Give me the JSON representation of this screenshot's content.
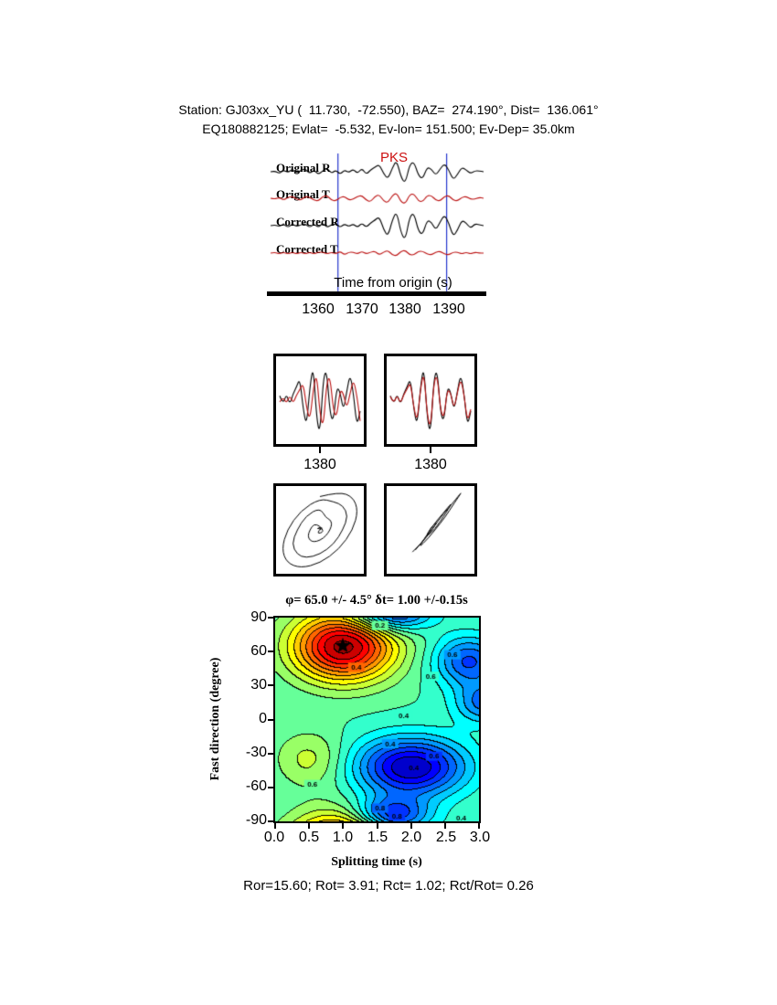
{
  "header": {
    "line1": "Station: GJ03xx_YU (  11.730,  -72.550), BAZ=  274.190°, Dist=  136.061°",
    "line2": "EQ180882125; Evlat=  -5.532, Ev-lon= 151.500; Ev-Dep= 35.0km"
  },
  "waveform_panel": {
    "phase_label": "PKS",
    "phase_color": "#cc1111",
    "trace_labels": [
      "Original R",
      "Original T",
      "Corrected R",
      "Corrected T"
    ],
    "axis_label": "Time from origin (s)",
    "window_color": "#2233cc"
  },
  "window_boxes": {
    "left_tick": "1380",
    "right_tick": "1380"
  },
  "footer": {
    "text": "Ror=15.60; Rot= 3.91; Rct= 1.02; Rct/Rot= 0.26"
  },
  "chart_data": [
    {
      "type": "line",
      "id": "seismograms",
      "xlabel": "Time from origin (s)",
      "x_start": 1349,
      "x_step": 1,
      "xlim": [
        1349,
        1398
      ],
      "xticks": [
        "1360",
        "1370",
        "1380",
        "1390"
      ],
      "window_lines": [
        1364.5,
        1389.5
      ],
      "series": [
        {
          "name": "Original R",
          "color": "#000000",
          "values": [
            0,
            1,
            -2,
            2,
            -1,
            3,
            -2,
            2,
            3,
            -2,
            2,
            -3,
            1,
            4,
            -2,
            2,
            -3,
            2,
            -1,
            3,
            -2,
            4,
            -3,
            2,
            5,
            8,
            -2,
            -8,
            4,
            13,
            -6,
            -13,
            8,
            11,
            -4,
            -8,
            5,
            3,
            -4,
            3,
            9,
            2,
            -9,
            -3,
            5,
            2,
            -2,
            1,
            1,
            0
          ]
        },
        {
          "name": "Original T",
          "color": "#bb1111",
          "values": [
            0,
            -1,
            1,
            -2,
            1,
            2,
            -1,
            -2,
            2,
            1,
            -2,
            -3,
            2,
            3,
            -2,
            -3,
            1,
            2,
            -2,
            -1,
            2,
            3,
            -2,
            -4,
            2,
            4,
            -3,
            -5,
            3,
            6,
            -4,
            -6,
            4,
            5,
            -3,
            -4,
            3,
            3,
            -2,
            -3,
            2,
            3,
            -2,
            -3,
            1,
            2,
            -1,
            -1,
            1,
            0
          ]
        },
        {
          "name": "Corrected R",
          "color": "#000000",
          "values": [
            0,
            1,
            -1,
            2,
            -2,
            2,
            -1,
            1,
            2,
            -2,
            2,
            -2,
            3,
            -2,
            1,
            2,
            -2,
            2,
            -1,
            2,
            -2,
            3,
            -2,
            3,
            6,
            10,
            -4,
            -12,
            6,
            16,
            -8,
            -16,
            10,
            14,
            -6,
            -10,
            6,
            4,
            -5,
            4,
            12,
            3,
            -12,
            -5,
            6,
            3,
            -3,
            2,
            1,
            0
          ]
        },
        {
          "name": "Corrected T",
          "color": "#bb1111",
          "values": [
            0,
            1,
            -1,
            1,
            -1,
            1,
            -1,
            1,
            -1,
            1,
            -1,
            1,
            1,
            -1,
            1,
            -1,
            2,
            -2,
            1,
            1,
            -1,
            2,
            -1,
            1,
            2,
            -2,
            1,
            3,
            -2,
            -3,
            2,
            3,
            -2,
            -2,
            2,
            2,
            -1,
            -2,
            1,
            2,
            -1,
            -2,
            1,
            1,
            -1,
            1,
            -1,
            1,
            0,
            0
          ]
        }
      ]
    },
    {
      "type": "line",
      "id": "window-left",
      "tick": "1380",
      "series": [
        {
          "name": "fast",
          "color": "#000000",
          "scale": 2.4,
          "values": [
            2,
            -2,
            3,
            -2,
            3,
            6,
            10,
            -4,
            -12,
            6,
            16,
            -8,
            -16,
            10,
            14,
            -6,
            -10,
            6,
            4,
            -5,
            4,
            12,
            3,
            -12,
            -5
          ]
        },
        {
          "name": "slow",
          "color": "#bb1111",
          "scale": 1.9,
          "values": [
            -1,
            2,
            -2,
            3,
            -2,
            3,
            6,
            10,
            -4,
            -12,
            6,
            16,
            -8,
            -16,
            10,
            14,
            -6,
            -10,
            6,
            4,
            -5,
            4,
            12,
            3,
            -12
          ]
        }
      ]
    },
    {
      "type": "line",
      "id": "window-right",
      "tick": "1380",
      "series": [
        {
          "name": "fast",
          "color": "#000000",
          "scale": 2.4,
          "values": [
            2,
            -2,
            3,
            -2,
            3,
            6,
            10,
            -4,
            -12,
            6,
            16,
            -8,
            -16,
            10,
            14,
            -6,
            -10,
            6,
            4,
            -5,
            4,
            12,
            3,
            -12,
            -5
          ]
        },
        {
          "name": "slow",
          "color": "#bb1111",
          "scale": 2.0,
          "values": [
            2,
            -2,
            3,
            -2,
            3,
            6,
            10,
            -4,
            -12,
            6,
            16,
            -8,
            -16,
            10,
            14,
            -6,
            -10,
            6,
            4,
            -5,
            4,
            12,
            3,
            -12,
            -5
          ]
        }
      ]
    },
    {
      "type": "scatter",
      "id": "particle-motion-original",
      "points": [
        [
          0,
          0.83
        ],
        [
          0.48,
          0.95
        ],
        [
          0.82,
          0.82
        ],
        [
          0.95,
          0.48
        ],
        [
          0.82,
          0
        ],
        [
          0.48,
          -0.48
        ],
        [
          0,
          -0.83
        ],
        [
          -0.48,
          -0.95
        ],
        [
          -0.82,
          -0.82
        ],
        [
          -0.95,
          -0.48
        ],
        [
          -0.82,
          0
        ],
        [
          -0.48,
          0.48
        ],
        [
          0,
          0.78
        ],
        [
          0.35,
          0.7
        ],
        [
          0.57,
          0.61
        ],
        [
          0.7,
          0.35
        ],
        [
          0.57,
          0
        ],
        [
          0.35,
          -0.35
        ],
        [
          0,
          -0.61
        ],
        [
          -0.35,
          -0.7
        ],
        [
          -0.57,
          -0.61
        ],
        [
          -0.7,
          -0.35
        ],
        [
          -0.57,
          0
        ],
        [
          -0.35,
          0.35
        ],
        [
          0,
          0.55
        ],
        [
          0.15,
          0.3
        ],
        [
          0.25,
          0.26
        ],
        [
          0.3,
          0.15
        ],
        [
          0.25,
          0
        ],
        [
          0.15,
          -0.15
        ],
        [
          0,
          -0.26
        ],
        [
          -0.15,
          -0.3
        ],
        [
          -0.25,
          -0.26
        ],
        [
          -0.3,
          -0.15
        ],
        [
          -0.25,
          0
        ],
        [
          -0.15,
          0.15
        ],
        [
          0,
          0.1
        ],
        [
          0.1,
          -0.05
        ],
        [
          -0.08,
          -0.1
        ],
        [
          0.05,
          0.08
        ],
        [
          -0.1,
          0.02
        ],
        [
          0.08,
          0.06
        ],
        [
          0,
          0
        ]
      ]
    },
    {
      "type": "scatter",
      "id": "particle-motion-corrected",
      "points": [
        [
          -0.45,
          -0.55
        ],
        [
          -0.2,
          -0.3
        ],
        [
          0,
          -0.05
        ],
        [
          0.2,
          0.25
        ],
        [
          0.45,
          0.55
        ],
        [
          0.7,
          0.85
        ],
        [
          0.78,
          0.95
        ],
        [
          0.6,
          0.68
        ],
        [
          0.35,
          0.3
        ],
        [
          0.15,
          0.05
        ],
        [
          -0.05,
          -0.2
        ],
        [
          -0.3,
          -0.45
        ],
        [
          -0.15,
          -0.22
        ],
        [
          0.05,
          0.1
        ],
        [
          0.3,
          0.4
        ],
        [
          0.55,
          0.7
        ],
        [
          0.4,
          0.45
        ],
        [
          0.1,
          0
        ],
        [
          -0.12,
          -0.18
        ],
        [
          0,
          0.05
        ],
        [
          0.18,
          0.22
        ],
        [
          0.05,
          0.02
        ],
        [
          -0.08,
          -0.12
        ],
        [
          -0.25,
          -0.35
        ],
        [
          -0.38,
          -0.5
        ]
      ]
    },
    {
      "type": "heatmap",
      "id": "splitting-misfit",
      "title": "φ= 65.0 +/- 4.5° δt= 1.00 +/-0.15s",
      "xlabel": "Splitting time (s)",
      "ylabel": "Fast direction (degree)",
      "xlim": [
        0,
        3
      ],
      "ylim": [
        -90,
        90
      ],
      "xticks": [
        "0.0",
        "0.5",
        "1.0",
        "1.5",
        "2.0",
        "2.5",
        "3.0"
      ],
      "yticks": [
        "90",
        "60",
        "30",
        "0",
        "-30",
        "-60",
        "-90"
      ],
      "best_fit": {
        "phi_deg": 65.0,
        "phi_err_deg": 4.5,
        "dt_s": 1.0,
        "dt_err_s": 0.15
      },
      "star": {
        "dt": 1.0,
        "phi": 65
      },
      "contour_interval": 0.05,
      "contour_labels": [
        {
          "v": "0.2",
          "dt": 1.55,
          "phi": 83
        },
        {
          "v": "0.4",
          "dt": 1.2,
          "phi": 46
        },
        {
          "v": "0.6",
          "dt": 2.62,
          "phi": 57
        },
        {
          "v": "0.6",
          "dt": 2.3,
          "phi": 38
        },
        {
          "v": "0.4",
          "dt": 1.9,
          "phi": 3
        },
        {
          "v": "0.4",
          "dt": 1.7,
          "phi": -22
        },
        {
          "v": "0.6",
          "dt": 0.55,
          "phi": -58
        },
        {
          "v": "0.6",
          "dt": 2.35,
          "phi": -33
        },
        {
          "v": "0.4",
          "dt": 2.05,
          "phi": -43
        },
        {
          "v": "0.8",
          "dt": 1.55,
          "phi": -79
        },
        {
          "v": "0.8",
          "dt": 1.8,
          "phi": -86
        },
        {
          "v": "0.4",
          "dt": 2.75,
          "phi": -88
        }
      ],
      "surface_model": {
        "base": 0.55,
        "blobs": [
          [
            -0.52,
            1.0,
            65,
            0.75,
            30
          ],
          [
            -0.12,
            0.5,
            -35,
            0.5,
            25
          ],
          [
            0.4,
            2.0,
            -42,
            0.8,
            26
          ],
          [
            0.26,
            2.85,
            52,
            0.5,
            22
          ],
          [
            0.32,
            1.7,
            -85,
            0.55,
            16
          ],
          [
            0.22,
            3.1,
            15,
            0.45,
            18
          ]
        ]
      }
    }
  ]
}
